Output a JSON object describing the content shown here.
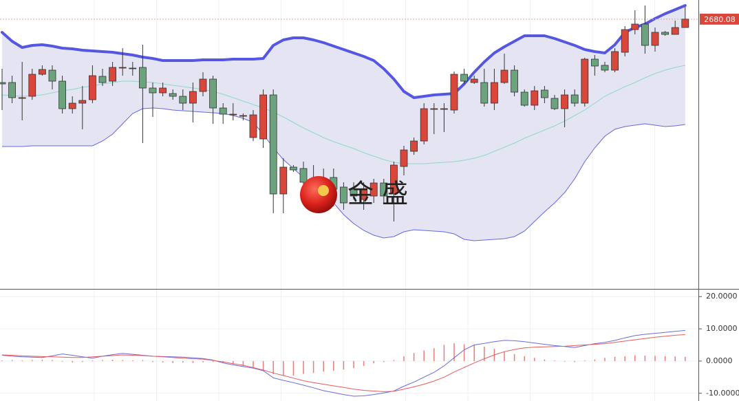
{
  "chart_data": [
    {
      "type": "candlestick",
      "ylim": [
        2484,
        2694
      ],
      "up_color": "#d9473b",
      "down_color": "#6aa37c",
      "open": [
        2634,
        2634,
        2623,
        2624,
        2640,
        2643,
        2635,
        2615,
        2619,
        2621.5,
        2638.5,
        2635,
        2645,
        2644.5,
        2645,
        2630,
        2626.5,
        2626,
        2624,
        2619,
        2627.5,
        2636.5,
        2615.5,
        2611,
        2610,
        2594,
        2593,
        2625,
        2553,
        2572.5,
        2571.5,
        2563,
        2555,
        2565,
        2558,
        2556.5,
        2549,
        2551.5,
        2561,
        2553,
        2573,
        2584,
        2591.5,
        2615,
        2615,
        2614,
        2640,
        2634,
        2634,
        2619,
        2634,
        2643,
        2627,
        2617.5,
        2628.5,
        2622.5,
        2615,
        2625,
        2619,
        2651,
        2646.5,
        2643,
        2656,
        2672.5,
        2676.5,
        2661,
        2670.5,
        2669,
        2674
      ],
      "high": [
        2644,
        2639,
        2649,
        2644,
        2646.5,
        2646.5,
        2639,
        2624,
        2631.5,
        2646.5,
        2644,
        2649,
        2659,
        2649,
        2661.5,
        2634,
        2634,
        2629,
        2629,
        2634,
        2641.5,
        2639,
        2619,
        2619,
        2611.5,
        2614,
        2629,
        2629,
        2579,
        2574,
        2576.5,
        2574,
        2571.5,
        2571.5,
        2561.5,
        2561.5,
        2561.5,
        2564,
        2564,
        2576.5,
        2588,
        2594,
        2619,
        2619,
        2619,
        2642,
        2644,
        2639,
        2644,
        2644,
        2655,
        2646.5,
        2629,
        2631.5,
        2631.5,
        2625,
        2629,
        2629,
        2652,
        2654,
        2649,
        2659,
        2675,
        2686.5,
        2690,
        2674,
        2671.5,
        2679,
        2689
      ],
      "low": [
        2614,
        2619,
        2606.5,
        2621.5,
        2639,
        2629,
        2611.5,
        2611.5,
        2600,
        2619,
        2631.5,
        2631.5,
        2639,
        2639,
        2590,
        2609,
        2624,
        2621.5,
        2614,
        2605,
        2624,
        2604,
        2604,
        2606.5,
        2606.5,
        2591.5,
        2586.5,
        2539,
        2539,
        2569,
        2559,
        2554,
        2549,
        2544,
        2541.5,
        2549,
        2541.5,
        2546.5,
        2546.5,
        2533,
        2566.5,
        2581.5,
        2589,
        2596.5,
        2598,
        2611.5,
        2633,
        2633,
        2616.5,
        2614,
        2633,
        2624,
        2616.5,
        2614,
        2619,
        2614,
        2601.5,
        2616.5,
        2616.5,
        2639,
        2641.5,
        2641.5,
        2653,
        2669,
        2655,
        2656.5,
        2668,
        2669,
        2674
      ],
      "close": [
        2633,
        2623,
        2623,
        2640,
        2643.5,
        2635,
        2615,
        2619,
        2621,
        2639,
        2634,
        2645,
        2645,
        2644.5,
        2630,
        2626.5,
        2630,
        2624,
        2619,
        2627.5,
        2636.5,
        2615.5,
        2611,
        2611,
        2610,
        2610.5,
        2625,
        2553,
        2572.5,
        2570.5,
        2561.5,
        2559,
        2563,
        2556.5,
        2546.5,
        2551.5,
        2556.5,
        2561,
        2551.5,
        2574,
        2585,
        2591.5,
        2615,
        2615,
        2615,
        2640,
        2635,
        2636.5,
        2619,
        2634,
        2643,
        2627,
        2617.5,
        2628,
        2623,
        2615,
        2625,
        2619,
        2651,
        2646,
        2643,
        2656.5,
        2672.5,
        2676.5,
        2661,
        2670.5,
        2669,
        2674,
        2680.08
      ],
      "bands": {
        "upper_color": "#5557e3",
        "middle_color": "#8fd8c8",
        "lower_color": "#6668dd",
        "fill_color": "#e4e4f3",
        "upper": [
          2670.5,
          2664,
          2659.5,
          2661,
          2661.5,
          2660.5,
          2659,
          2658.5,
          2657.5,
          2657,
          2656.5,
          2656,
          2655,
          2654,
          2652.5,
          2651.5,
          2650,
          2650,
          2650,
          2650,
          2650.5,
          2650.5,
          2650.5,
          2651,
          2651,
          2651,
          2651.5,
          2661,
          2665,
          2666.5,
          2666.5,
          2665,
          2663,
          2660.5,
          2658,
          2655.5,
          2653,
          2650,
          2644,
          2636.5,
          2627.5,
          2623,
          2624,
          2625,
          2625.5,
          2626,
          2633,
          2641.5,
          2649,
          2655.5,
          2660,
          2664,
          2668,
          2668,
          2668,
          2666,
          2663.5,
          2661,
          2658,
          2656.5,
          2655.5,
          2661.5,
          2670.5,
          2674,
          2676.5,
          2680.5,
          2684,
          2687,
          2690
        ],
        "middle": [
          2625,
          2624.5,
          2624,
          2624.5,
          2625,
          2626.5,
          2628,
          2629,
          2630.5,
          2631.5,
          2633,
          2634,
          2635,
          2635,
          2634.5,
          2634,
          2633,
          2632,
          2631,
          2630,
          2629,
          2627.5,
          2625.5,
          2623,
          2620.5,
          2618,
          2615.5,
          2612.5,
          2609,
          2605,
          2601,
          2597.5,
          2594,
          2591,
          2588.5,
          2586,
          2583,
          2580.5,
          2578,
          2576,
          2575,
          2575,
          2575,
          2575.5,
          2576,
          2576.5,
          2577.5,
          2579,
          2581,
          2584,
          2587,
          2590,
          2593.5,
          2596.5,
          2599.5,
          2602.5,
          2606,
          2610,
          2614,
          2619,
          2624,
          2627.5,
          2631,
          2634,
          2637.5,
          2640.5,
          2643,
          2645,
          2646.5
        ],
        "lower": [
          2587.5,
          2587.5,
          2587.5,
          2588,
          2588,
          2588,
          2588,
          2588,
          2588,
          2588,
          2591.5,
          2596.5,
          2604,
          2611.5,
          2615,
          2615.5,
          2615,
          2614,
          2613.5,
          2613,
          2612.5,
          2612,
          2611.5,
          2610,
          2608,
          2605,
          2596.5,
          2586.5,
          2578,
          2571.5,
          2565,
          2559,
          2552.5,
          2546.5,
          2538,
          2531.5,
          2526.5,
          2523,
          2521,
          2522,
          2525.5,
          2527,
          2526.5,
          2526,
          2525.5,
          2524,
          2520,
          2519,
          2519.5,
          2520,
          2520.5,
          2522,
          2526,
          2533,
          2540,
          2546.5,
          2554,
          2564,
          2576.5,
          2586.5,
          2595,
          2600,
          2602,
          2603,
          2604,
          2603,
          2602,
          2602.5,
          2603.5
        ]
      },
      "last_price": 2680.08,
      "last_price_color": "#d9473b",
      "watermark": "金 盛"
    },
    {
      "type": "macd",
      "ylim": [
        -12.4,
        22.4
      ],
      "yticks": [
        {
          "value": 20,
          "label": "20.0000"
        },
        {
          "value": 10,
          "label": "10.0000"
        },
        {
          "value": 0,
          "label": "0.0000"
        },
        {
          "value": -10,
          "label": "-10.0000"
        }
      ],
      "grid": true,
      "histogram": {
        "color": "#f07a7a",
        "values": [
          0.2,
          0.3,
          0.2,
          0.3,
          0.4,
          0.3,
          -0.2,
          -0.4,
          -0.3,
          0.2,
          0.3,
          0.4,
          0.3,
          0.2,
          0.3,
          -0.3,
          -0.4,
          -0.6,
          -0.5,
          -0.6,
          -0.4,
          -0.3,
          -0.5,
          -1,
          -1.5,
          -2,
          -3,
          -4,
          -4.5,
          -4.5,
          -4,
          -3.7,
          -3.3,
          -3,
          -2.6,
          -2.2,
          -1.5,
          -0.7,
          -0.3,
          0.3,
          1.5,
          2.5,
          3.3,
          4,
          5,
          5.5,
          5.2,
          5,
          4.5,
          3.8,
          3,
          2.2,
          1.5,
          1,
          0.5,
          0.2,
          -0.2,
          -0.3,
          0.2,
          0.5,
          1,
          1.3,
          1.5,
          1.8,
          1.7,
          1.6,
          1.5,
          1.4,
          1.3
        ]
      },
      "series": [
        {
          "color": "#6a6ae0",
          "values": [
            1.8,
            1.5,
            1.3,
            1.2,
            1.1,
            1.6,
            2.2,
            1.8,
            1.3,
            0.9,
            1.5,
            2.0,
            2.4,
            2.1,
            1.8,
            1.5,
            1.4,
            1.3,
            1.2,
            1.0,
            0.8,
            0.3,
            -0.6,
            -1.2,
            -1.7,
            -2.2,
            -3.0,
            -5.2,
            -6.0,
            -6.7,
            -7.5,
            -8.3,
            -9.2,
            -9.8,
            -10.4,
            -10.9,
            -10.8,
            -10.4,
            -9.9,
            -9.3,
            -7.8,
            -6.5,
            -5.0,
            -3.5,
            -1.5,
            1.0,
            3.5,
            5.0,
            5.5,
            6.0,
            6.4,
            6.3,
            6.0,
            5.6,
            5.2,
            4.8,
            4.5,
            4.2,
            4.8,
            5.4,
            5.8,
            6.4,
            7.2,
            7.9,
            8.3,
            8.6,
            8.9,
            9.2,
            9.5
          ]
        },
        {
          "color": "#e85a5a",
          "values": [
            1.9,
            1.8,
            1.6,
            1.5,
            1.4,
            1.3,
            1.2,
            1.1,
            1.1,
            1.3,
            1.5,
            1.7,
            1.9,
            1.8,
            1.7,
            1.5,
            1.3,
            1.1,
            0.9,
            0.7,
            0.6,
            0.2,
            -0.3,
            -0.8,
            -1.3,
            -2.0,
            -2.8,
            -3.7,
            -4.5,
            -5.3,
            -6.1,
            -6.7,
            -7.2,
            -7.7,
            -8.2,
            -8.7,
            -9.1,
            -9.3,
            -9.5,
            -9.4,
            -8.7,
            -8.0,
            -7.2,
            -6.2,
            -5.0,
            -3.4,
            -2.0,
            -0.6,
            0.7,
            1.9,
            2.9,
            3.6,
            4.1,
            4.3,
            4.4,
            4.5,
            4.6,
            4.8,
            5.0,
            5.2,
            5.4,
            5.8,
            6.2,
            6.6,
            7.0,
            7.4,
            7.7,
            8.0,
            8.2
          ]
        }
      ]
    }
  ]
}
